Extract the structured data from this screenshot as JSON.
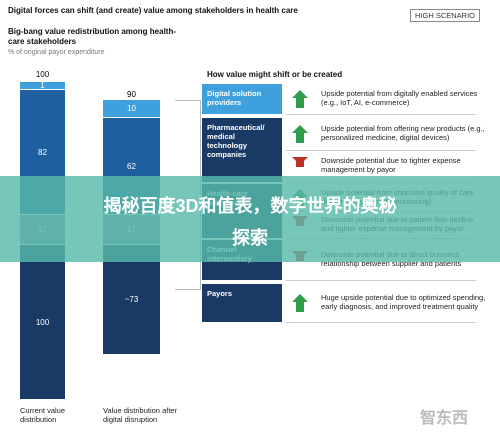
{
  "header": {
    "title": "Digital forces can shift (and create) value among stakeholders in health care",
    "scenario": "HIGH SCENARIO",
    "subtitle": "Big-bang value redistribution among health-care stakeholders",
    "note": "% of original payor expenditure"
  },
  "bars": [
    {
      "total": "100",
      "segments": [
        "1",
        "82",
        "17",
        "100"
      ],
      "label": "Current value distribution"
    },
    {
      "total": "90",
      "segments": [
        "10",
        "62",
        "17",
        "~73"
      ],
      "label": "Value distribution after digital disruption"
    }
  ],
  "shifts": {
    "title": "How value might shift or be created",
    "rows": [
      {
        "stakeholder": "Digital solution providers",
        "items": [
          {
            "direction": "up",
            "text": "Upside potential from digitally enabled services (e.g., IoT, AI, e-commerce)"
          }
        ]
      },
      {
        "stakeholder": "Pharmaceutical/ medical technology companies",
        "items": [
          {
            "direction": "up",
            "text": "Upside potential from offering new products (e.g., personalized medicine, digital devices)"
          },
          {
            "direction": "down",
            "text": "Downside potential due to tighter expense management by payor"
          }
        ]
      },
      {
        "stakeholder": "Health-care providers",
        "items": [
          {
            "direction": "up",
            "text": "Upside potential from improved quality of care delivery (e.g., remote monitoring)"
          },
          {
            "direction": "down",
            "text": "Downside potential due to patient flow decline and tighter expense management by payor"
          }
        ]
      },
      {
        "stakeholder": "Channel intermediary",
        "items": [
          {
            "direction": "down",
            "text": "Downside potential due to direct business relationship between supplier and patients"
          }
        ]
      },
      {
        "stakeholder": "Payors",
        "items": [
          {
            "direction": "up",
            "text": "Huge upside potential due to optimized spending, early diagnosis, and improved treatment quality"
          }
        ]
      }
    ]
  },
  "banner": {
    "line1": "揭秘百度3D和值表，数字世界的奥秘",
    "line2": "探索"
  },
  "watermark": "智东西"
}
